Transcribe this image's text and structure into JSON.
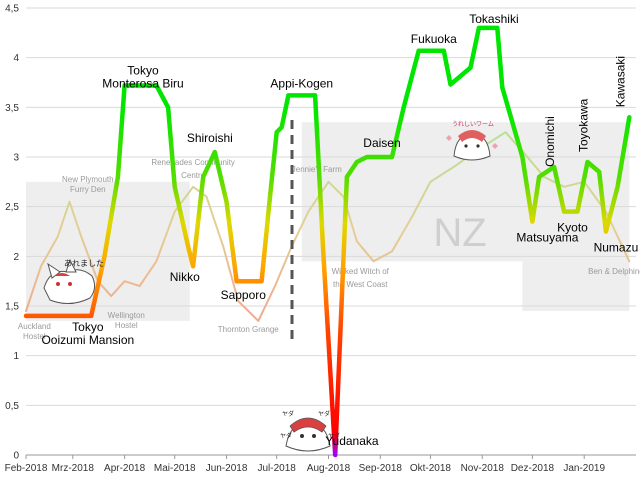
{
  "chart_data": {
    "type": "line",
    "ylim": [
      0,
      4.5
    ],
    "y_ticks": [
      "0",
      "0,5",
      "1",
      "1,5",
      "2",
      "2,5",
      "3",
      "3,5",
      "4",
      "4,5"
    ],
    "x_ticks": [
      "Feb-2018",
      "Mrz-2018",
      "Apr-2018",
      "Mai-2018",
      "Jun-2018",
      "Jul-2018",
      "Aug-2018",
      "Sep-2018",
      "Okt-2018",
      "Nov-2018",
      "Dez-2018",
      "Jan-2019"
    ],
    "grid": "horizontal",
    "watermark": "NZ",
    "series": [
      {
        "color": "gradient red-to-green by value",
        "points": [
          [
            "2018-02-01",
            1.4
          ],
          [
            "2018-03-12",
            1.4
          ],
          [
            "2018-03-20",
            2.0
          ],
          [
            "2018-03-28",
            2.8
          ],
          [
            "2018-04-01",
            3.72
          ],
          [
            "2018-04-20",
            3.72
          ],
          [
            "2018-04-27",
            3.5
          ],
          [
            "2018-05-01",
            2.7
          ],
          [
            "2018-05-09",
            2.1
          ],
          [
            "2018-05-12",
            1.9
          ],
          [
            "2018-05-18",
            2.8
          ],
          [
            "2018-05-25",
            3.05
          ],
          [
            "2018-06-01",
            2.55
          ],
          [
            "2018-06-07",
            1.75
          ],
          [
            "2018-06-22",
            1.75
          ],
          [
            "2018-06-27",
            2.6
          ],
          [
            "2018-07-01",
            3.25
          ],
          [
            "2018-07-04",
            3.3
          ],
          [
            "2018-07-08",
            3.62
          ],
          [
            "2018-07-24",
            3.62
          ],
          [
            "2018-07-29",
            2.0
          ],
          [
            "2018-08-05",
            0.0
          ],
          [
            "2018-08-12",
            2.8
          ],
          [
            "2018-08-18",
            2.95
          ],
          [
            "2018-08-24",
            3.0
          ],
          [
            "2018-09-08",
            3.0
          ],
          [
            "2018-09-15",
            3.5
          ],
          [
            "2018-09-24",
            4.07
          ],
          [
            "2018-10-09",
            4.07
          ],
          [
            "2018-10-13",
            3.73
          ],
          [
            "2018-10-25",
            3.9
          ],
          [
            "2018-10-30",
            4.3
          ],
          [
            "2018-11-10",
            4.3
          ],
          [
            "2018-11-13",
            3.7
          ],
          [
            "2018-11-25",
            3.0
          ],
          [
            "2018-12-01",
            2.35
          ],
          [
            "2018-12-05",
            2.8
          ],
          [
            "2018-12-14",
            2.9
          ],
          [
            "2018-12-20",
            2.45
          ],
          [
            "2018-12-28",
            2.45
          ],
          [
            "2019-01-03",
            2.95
          ],
          [
            "2019-01-10",
            2.85
          ],
          [
            "2019-01-14",
            2.25
          ],
          [
            "2019-01-21",
            2.7
          ],
          [
            "2019-01-28",
            3.4
          ]
        ]
      },
      {
        "color": "pale gradient",
        "points": [
          [
            "2018-02-01",
            1.45
          ],
          [
            "2018-02-10",
            1.9
          ],
          [
            "2018-02-20",
            2.2
          ],
          [
            "2018-02-27",
            2.55
          ],
          [
            "2018-03-06",
            2.2
          ],
          [
            "2018-03-16",
            1.75
          ],
          [
            "2018-03-24",
            1.6
          ],
          [
            "2018-04-01",
            1.75
          ],
          [
            "2018-04-10",
            1.7
          ],
          [
            "2018-04-20",
            1.95
          ],
          [
            "2018-05-01",
            2.45
          ],
          [
            "2018-05-12",
            2.7
          ],
          [
            "2018-05-20",
            2.6
          ],
          [
            "2018-05-30",
            2.1
          ],
          [
            "2018-06-08",
            1.55
          ],
          [
            "2018-06-20",
            1.35
          ],
          [
            "2018-06-30",
            1.7
          ],
          [
            "2018-07-10",
            2.1
          ],
          [
            "2018-07-20",
            2.45
          ],
          [
            "2018-08-01",
            2.75
          ],
          [
            "2018-08-10",
            2.6
          ],
          [
            "2018-08-18",
            2.15
          ],
          [
            "2018-08-28",
            1.95
          ],
          [
            "2018-09-08",
            2.05
          ],
          [
            "2018-09-20",
            2.4
          ],
          [
            "2018-10-01",
            2.75
          ],
          [
            "2018-10-15",
            2.9
          ],
          [
            "2018-11-01",
            3.1
          ],
          [
            "2018-11-15",
            3.25
          ],
          [
            "2018-11-28",
            3.0
          ],
          [
            "2018-12-08",
            2.8
          ],
          [
            "2018-12-20",
            2.7
          ],
          [
            "2019-01-01",
            2.75
          ],
          [
            "2019-01-14",
            2.45
          ],
          [
            "2019-01-28",
            1.95
          ]
        ]
      }
    ],
    "bands": [
      {
        "from": "2018-02-01",
        "to": "2018-05-10",
        "y0": 1.35,
        "y1": 2.75
      },
      {
        "from": "2018-07-16",
        "to": "2019-01-28",
        "y0": 1.95,
        "y1": 3.35
      },
      {
        "from": "2018-11-25",
        "to": "2019-01-28",
        "y0": 1.45,
        "y1": 1.95
      }
    ],
    "annotations": [
      {
        "text": "Tokyo\nOoizumi Mansion",
        "date": "2018-03-10",
        "y": 1.25,
        "align": "middle"
      },
      {
        "text": "Tokyo\nMonterosa Biru",
        "date": "2018-04-12",
        "y": 3.83,
        "align": "middle"
      },
      {
        "text": "Nikko",
        "date": "2018-05-07",
        "y": 1.75,
        "align": "middle"
      },
      {
        "text": "Shiroishi",
        "date": "2018-05-22",
        "y": 3.15,
        "align": "middle"
      },
      {
        "text": "Sapporo",
        "date": "2018-06-11",
        "y": 1.57,
        "align": "middle"
      },
      {
        "text": "Appi-Kogen",
        "date": "2018-07-16",
        "y": 3.7,
        "align": "middle"
      },
      {
        "text": "Yudanaka",
        "date": "2018-08-15",
        "y": 0.1,
        "align": "middle"
      },
      {
        "text": "Daisen",
        "date": "2018-09-02",
        "y": 3.1,
        "align": "middle"
      },
      {
        "text": "Fukuoka",
        "date": "2018-10-03",
        "y": 4.15,
        "align": "middle"
      },
      {
        "text": "Tokashiki",
        "date": "2018-11-08",
        "y": 4.35,
        "align": "middle"
      },
      {
        "text": "Matsuyama",
        "date": "2018-12-10",
        "y": 2.15,
        "align": "middle"
      },
      {
        "text": "Kyoto",
        "date": "2018-12-25",
        "y": 2.25,
        "align": "middle"
      },
      {
        "text": "Numazu",
        "date": "2019-01-20",
        "y": 2.05,
        "align": "middle"
      },
      {
        "text": "Onomichi",
        "date": "2018-12-14",
        "y": 2.9,
        "align": "vertical"
      },
      {
        "text": "Toyokawa",
        "date": "2019-01-03",
        "y": 3.05,
        "align": "vertical"
      },
      {
        "text": "Kawasaki",
        "date": "2019-01-25",
        "y": 3.5,
        "align": "vertical"
      }
    ],
    "background_labels": [
      {
        "text": "New Plymouth",
        "date": "2018-03-10",
        "y": 2.75
      },
      {
        "text": "Furry Den",
        "date": "2018-03-10",
        "y": 2.65
      },
      {
        "text": "Auckland",
        "date": "2018-02-06",
        "y": 1.27
      },
      {
        "text": "Hostel",
        "date": "2018-02-06",
        "y": 1.17
      },
      {
        "text": "Wellington",
        "date": "2018-04-02",
        "y": 1.38
      },
      {
        "text": "Hostel",
        "date": "2018-04-02",
        "y": 1.28
      },
      {
        "text": "Renegades Community",
        "date": "2018-05-12",
        "y": 2.92
      },
      {
        "text": "Centre",
        "date": "2018-05-12",
        "y": 2.79
      },
      {
        "text": "Thornton Grange",
        "date": "2018-06-14",
        "y": 1.24
      },
      {
        "text": "Jennie's Farm",
        "date": "2018-07-25",
        "y": 2.85
      },
      {
        "text": "Wicked Witch of",
        "date": "2018-08-20",
        "y": 1.82
      },
      {
        "text": "the West Coast",
        "date": "2018-08-20",
        "y": 1.69
      },
      {
        "text": "Ben & Delphine",
        "date": "2019-01-20",
        "y": 1.82
      }
    ],
    "sticker_texts": [
      "あれました",
      "ヤダ",
      "ヤダ",
      "ヤダ",
      "ヤダ",
      "うれしいワーム"
    ]
  }
}
